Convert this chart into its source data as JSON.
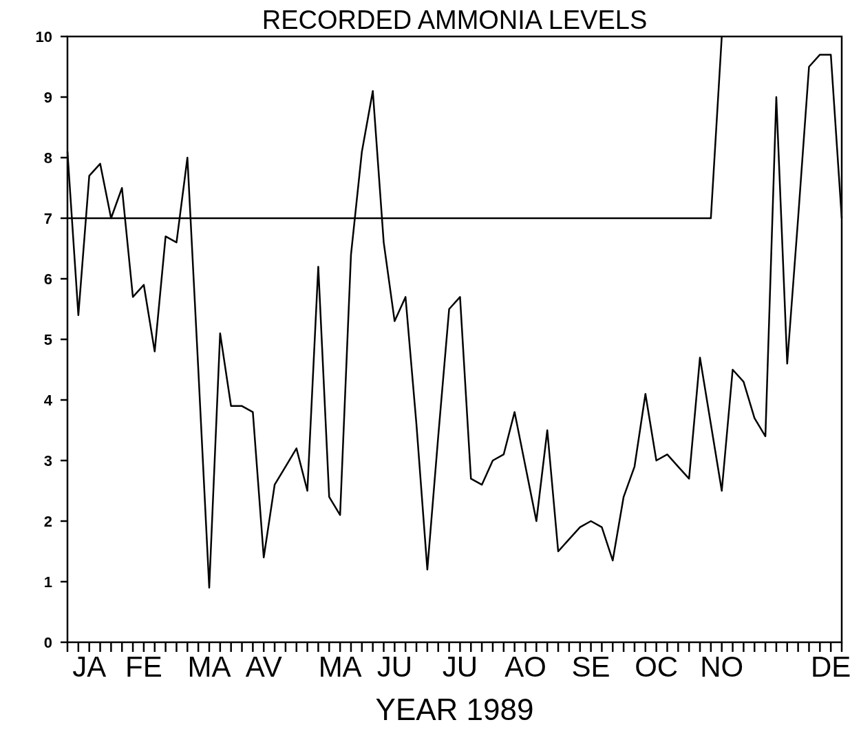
{
  "chart_data": {
    "type": "line",
    "title": "RECORDED AMMONIA LEVELS",
    "xlabel": "YEAR 1989",
    "categories": [
      null,
      null,
      "JA",
      null,
      null,
      null,
      null,
      "FE",
      null,
      null,
      null,
      null,
      null,
      "MA",
      null,
      null,
      null,
      null,
      "AV",
      null,
      null,
      null,
      null,
      null,
      null,
      "MA",
      null,
      null,
      null,
      null,
      "JU",
      null,
      null,
      null,
      null,
      null,
      "JU",
      null,
      null,
      null,
      null,
      null,
      "AO",
      null,
      null,
      null,
      null,
      null,
      "SE",
      null,
      null,
      null,
      null,
      null,
      "OC",
      null,
      null,
      null,
      null,
      null,
      "NO",
      null,
      null,
      null,
      null,
      null,
      null,
      null,
      null,
      null,
      "DE",
      null
    ],
    "ylim": [
      0,
      10
    ],
    "yticks": [
      0,
      1,
      2,
      3,
      4,
      5,
      6,
      7,
      8,
      9,
      10
    ],
    "grid": false,
    "marker": "none",
    "line_style": "solid",
    "series": [
      {
        "color": "#000000",
        "values": [
          8.1,
          5.4,
          7.7,
          7.9,
          7.0,
          7.5,
          5.7,
          5.9,
          4.8,
          6.7,
          6.6,
          8.0,
          4.5,
          0.9,
          5.1,
          3.9,
          3.9,
          3.8,
          1.4,
          2.6,
          2.9,
          3.2,
          2.5,
          6.2,
          2.4,
          2.1,
          6.4,
          8.1,
          9.1,
          6.6,
          5.3,
          5.7,
          3.6,
          1.2,
          3.4,
          5.5,
          5.7,
          2.7,
          2.6,
          3.0,
          3.1,
          3.8,
          2.9,
          2.0,
          3.5,
          1.5,
          1.7,
          1.9,
          2.0,
          1.9,
          1.35,
          2.4,
          2.9,
          4.1,
          3.0,
          3.1,
          2.9,
          2.7,
          4.7,
          3.6,
          2.5,
          4.5,
          4.3,
          3.7,
          3.4,
          9.0,
          4.6,
          7.0,
          9.5,
          9.7,
          9.7,
          7.0
        ]
      },
      {
        "color": "#000000",
        "values": [
          7,
          7,
          7,
          7,
          7,
          7,
          7,
          7,
          7,
          7,
          7,
          7,
          7,
          7,
          7,
          7,
          7,
          7,
          7,
          7,
          7,
          7,
          7,
          7,
          7,
          7,
          7,
          7,
          7,
          7,
          7,
          7,
          7,
          7,
          7,
          7,
          7,
          7,
          7,
          7,
          7,
          7,
          7,
          7,
          7,
          7,
          7,
          7,
          7,
          7,
          7,
          7,
          7,
          7,
          7,
          7,
          7,
          7,
          7,
          7,
          10,
          null,
          null,
          null,
          null,
          null,
          null,
          null,
          null,
          null,
          null,
          null
        ]
      }
    ]
  }
}
